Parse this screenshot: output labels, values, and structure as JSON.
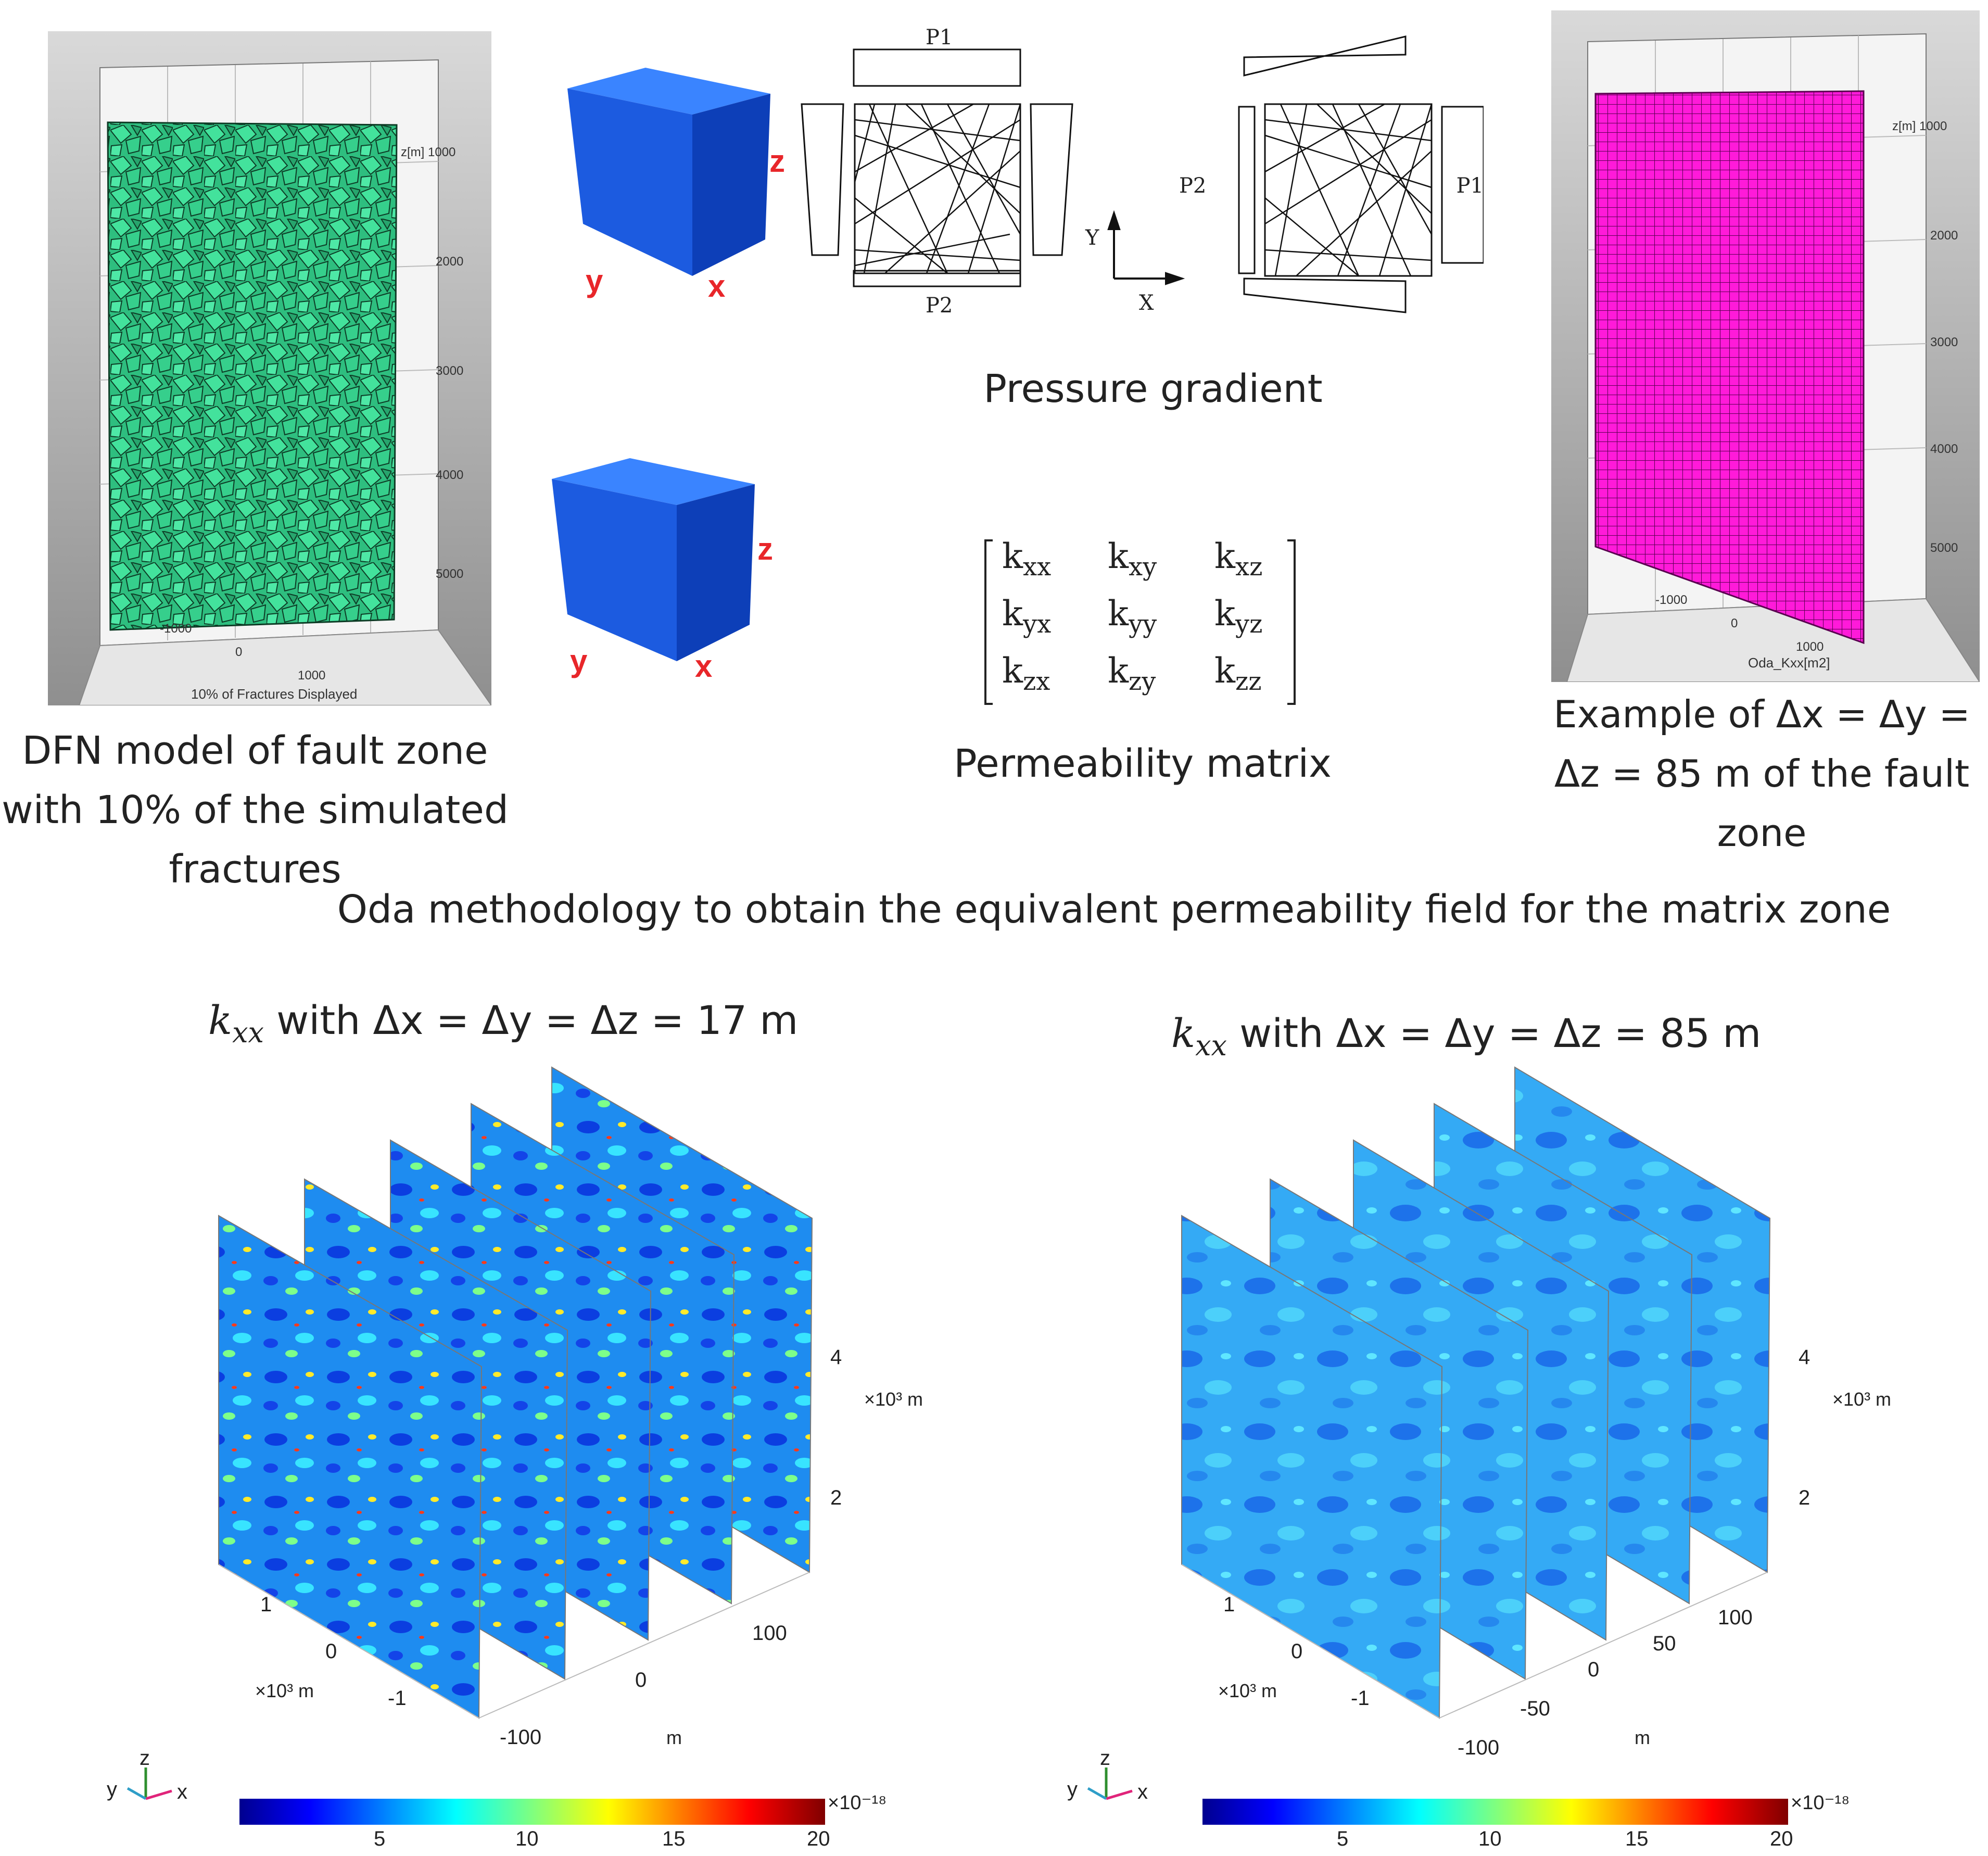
{
  "colors": {
    "fracture_green": "#3ad792",
    "cube_blue": "#1d5ee6",
    "grid_magenta": "#ff1ad9",
    "axis_red": "#e8262a",
    "panel_gray": "#9f9f9f"
  },
  "dfn_panel": {
    "z_axis_label": "z[m] 1000",
    "z_ticks": [
      "2000",
      "3000",
      "4000",
      "5000"
    ],
    "x_ticks": [
      "-1000",
      "0",
      "1000"
    ],
    "footer": "10% of Fractures Displayed",
    "caption_lines": [
      "DFN model of fault zone",
      "with 10% of the simulated",
      "fractures"
    ]
  },
  "cubes": {
    "top": {
      "z": "z",
      "y": "y",
      "x": "x"
    },
    "bottom": {
      "z": "z",
      "y": "y",
      "x": "x"
    }
  },
  "pressure_diagram": {
    "left_top_label": "P1",
    "left_bottom_label": "P2",
    "axis_y": "Y",
    "axis_x": "X",
    "right_left_label": "P2",
    "right_right_label": "P1",
    "caption": "Pressure gradient"
  },
  "permeability_matrix": {
    "rows": [
      [
        "k",
        "xx",
        "k",
        "xy",
        "k",
        "xz"
      ],
      [
        "k",
        "yx",
        "k",
        "yy",
        "k",
        "yz"
      ],
      [
        "k",
        "zx",
        "k",
        "zy",
        "k",
        "zz"
      ]
    ],
    "caption": "Permeability matrix"
  },
  "grid_panel": {
    "z_axis_label": "z[m] 1000",
    "z_ticks": [
      "2000",
      "3000",
      "4000",
      "5000"
    ],
    "x_ticks": [
      "-1000",
      "0",
      "1000"
    ],
    "footer": "Oda_Kxx[m2]",
    "caption_lines": [
      "Example of Δx = Δy =",
      "Δz = 85 m of the fault",
      "zone"
    ]
  },
  "methodology_caption": "Oda methodology to obtain the equivalent permeability field for the matrix zone",
  "slice_plots": [
    {
      "title_k": "k",
      "title_sub": "xx",
      "title_rest": " with Δx = Δy = Δz = 17 m",
      "z_ticks": [
        "4",
        "2"
      ],
      "z_unit": "×10³ m",
      "x_ticks": [
        "1",
        "0",
        "-1"
      ],
      "x_unit": "×10³ m",
      "y_ticks": [
        "100",
        "0",
        "-100"
      ],
      "y_unit": "m",
      "colorbar_ticks": [
        "5",
        "10",
        "15",
        "20"
      ],
      "colorbar_exp": "×10⁻¹⁸",
      "triad": {
        "x": "x",
        "y": "y",
        "z": "z"
      }
    },
    {
      "title_k": "k",
      "title_sub": "xx",
      "title_rest": " with Δx = Δy = Δz = 85 m",
      "z_ticks": [
        "4",
        "2"
      ],
      "z_unit": "×10³ m",
      "x_ticks": [
        "1",
        "0",
        "-1"
      ],
      "x_unit": "×10³ m",
      "y_ticks": [
        "100",
        "50",
        "0",
        "-50",
        "-100"
      ],
      "y_unit": "m",
      "colorbar_ticks": [
        "5",
        "10",
        "15",
        "20"
      ],
      "colorbar_exp": "×10⁻¹⁸",
      "triad": {
        "x": "x",
        "y": "y",
        "z": "z"
      }
    }
  ]
}
